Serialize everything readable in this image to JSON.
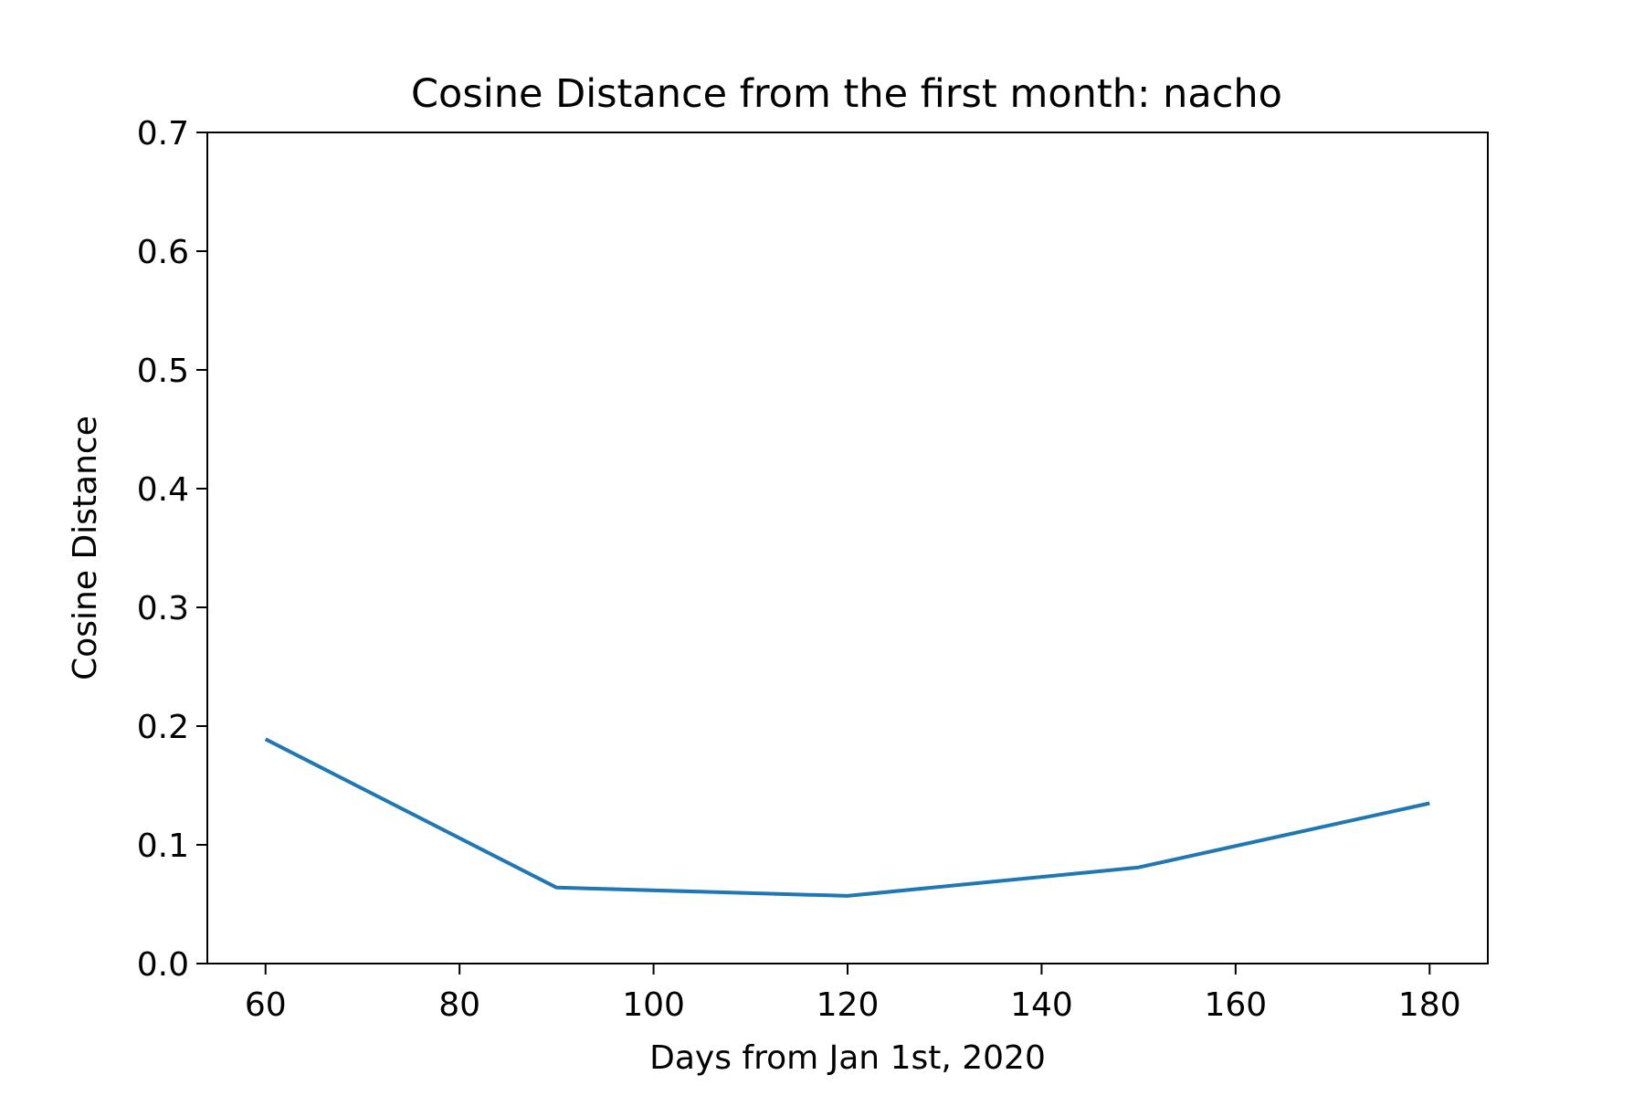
{
  "chart_data": {
    "type": "line",
    "title": "Cosine Distance from the first month: nacho",
    "xlabel": "Days from Jan 1st, 2020",
    "ylabel": "Cosine Distance",
    "x": [
      60,
      90,
      120,
      150,
      180
    ],
    "series": [
      {
        "values": [
          0.189,
          0.064,
          0.057,
          0.081,
          0.135
        ],
        "color": "#1f77b4"
      }
    ],
    "xlim": [
      54,
      186
    ],
    "ylim": [
      0,
      0.7
    ],
    "xticks": [
      60,
      80,
      100,
      120,
      140,
      160,
      180
    ],
    "xtick_labels": [
      "60",
      "80",
      "100",
      "120",
      "140",
      "160",
      "180"
    ],
    "yticks": [
      0,
      0.1,
      0.2,
      0.3,
      0.4,
      0.5,
      0.6,
      0.7
    ],
    "ytick_labels": [
      "0.0",
      "0.1",
      "0.2",
      "0.3",
      "0.4",
      "0.5",
      "0.6",
      "0.7"
    ],
    "grid": false,
    "legend": "none"
  }
}
